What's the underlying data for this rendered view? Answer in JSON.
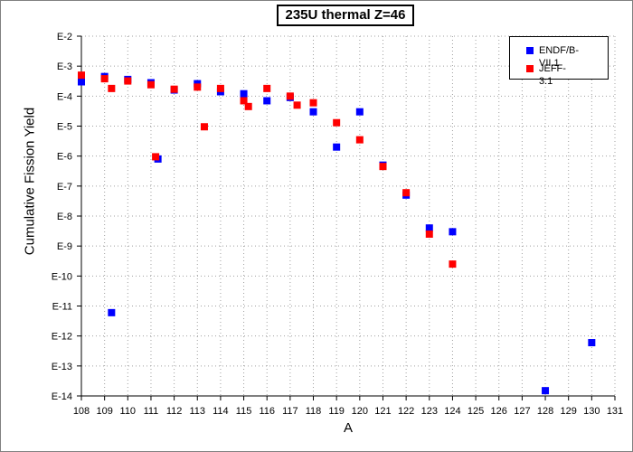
{
  "chart_data": {
    "type": "scatter",
    "title": "235U thermal Z=46",
    "xlabel": "A",
    "ylabel": "Cumulative Fission Yield",
    "xlim": [
      108,
      131
    ],
    "ylim_exponent": [
      -14,
      -2
    ],
    "y_scale": "log",
    "grid": true,
    "legend_position": "top-right",
    "x_ticks": [
      "108",
      "109",
      "110",
      "111",
      "112",
      "113",
      "114",
      "115",
      "116",
      "117",
      "118",
      "119",
      "120",
      "121",
      "122",
      "123",
      "124",
      "125",
      "126",
      "127",
      "128",
      "129",
      "130",
      "131"
    ],
    "y_ticks": [
      "E-2",
      "E-3",
      "E-4",
      "E-5",
      "E-6",
      "E-7",
      "E-8",
      "E-9",
      "E-10",
      "E-11",
      "E-12",
      "E-13",
      "E-14"
    ],
    "series": [
      {
        "name": "ENDF/B-VII.1",
        "color": "#0000ff",
        "marker": "square",
        "points": [
          {
            "x": 108,
            "y": 0.0003
          },
          {
            "x": 109,
            "y": 0.00045
          },
          {
            "x": 109.3,
            "y": 6e-12
          },
          {
            "x": 110,
            "y": 0.00036
          },
          {
            "x": 111,
            "y": 0.00028
          },
          {
            "x": 111.3,
            "y": 8e-07
          },
          {
            "x": 112,
            "y": 0.00016
          },
          {
            "x": 113,
            "y": 0.00026
          },
          {
            "x": 114,
            "y": 0.00014
          },
          {
            "x": 115,
            "y": 0.00012
          },
          {
            "x": 116,
            "y": 7e-05
          },
          {
            "x": 117,
            "y": 9e-05
          },
          {
            "x": 118,
            "y": 3e-05
          },
          {
            "x": 119,
            "y": 2e-06
          },
          {
            "x": 120,
            "y": 3e-05
          },
          {
            "x": 121,
            "y": 5e-07
          },
          {
            "x": 122,
            "y": 5e-08
          },
          {
            "x": 123,
            "y": 4e-09
          },
          {
            "x": 124,
            "y": 3e-09
          },
          {
            "x": 128,
            "y": 1.5e-14
          },
          {
            "x": 130,
            "y": 6e-13
          }
        ]
      },
      {
        "name": "JEFF-3.1",
        "color": "#ff0000",
        "marker": "square",
        "points": [
          {
            "x": 108,
            "y": 0.0005
          },
          {
            "x": 109,
            "y": 0.00038
          },
          {
            "x": 109.3,
            "y": 0.00018
          },
          {
            "x": 110,
            "y": 0.00032
          },
          {
            "x": 111,
            "y": 0.00024
          },
          {
            "x": 111.2,
            "y": 9.5e-07
          },
          {
            "x": 112,
            "y": 0.00017
          },
          {
            "x": 113,
            "y": 0.0002
          },
          {
            "x": 113.3,
            "y": 9.5e-06
          },
          {
            "x": 114,
            "y": 0.00018
          },
          {
            "x": 115,
            "y": 7e-05
          },
          {
            "x": 115.2,
            "y": 4.5e-05
          },
          {
            "x": 116,
            "y": 0.00018
          },
          {
            "x": 117,
            "y": 0.0001
          },
          {
            "x": 117.3,
            "y": 5e-05
          },
          {
            "x": 118,
            "y": 6e-05
          },
          {
            "x": 119,
            "y": 1.3e-05
          },
          {
            "x": 120,
            "y": 3.5e-06
          },
          {
            "x": 121,
            "y": 4.5e-07
          },
          {
            "x": 122,
            "y": 6e-08
          },
          {
            "x": 123,
            "y": 2.5e-09
          },
          {
            "x": 124,
            "y": 2.5e-10
          }
        ]
      }
    ]
  }
}
